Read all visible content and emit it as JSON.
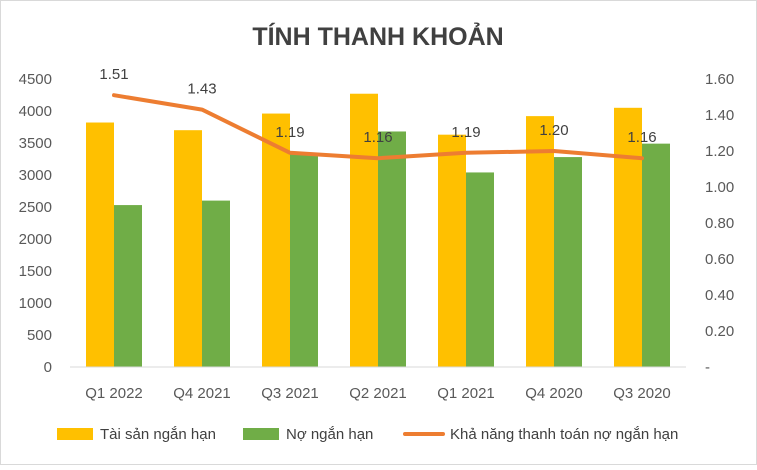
{
  "chart_data": {
    "type": "bar",
    "title": "TÍNH THANH KHOẢN",
    "categories": [
      "Q1 2022",
      "Q4 2021",
      "Q3 2021",
      "Q2 2021",
      "Q1 2021",
      "Q4 2020",
      "Q3 2020"
    ],
    "series": [
      {
        "name": "Tài sản ngắn hạn",
        "type": "bar",
        "axis": "left",
        "color": "#FFC000",
        "values": [
          3820,
          3700,
          3960,
          4270,
          3630,
          3920,
          4050
        ]
      },
      {
        "name": "Nợ ngắn hạn",
        "type": "bar",
        "axis": "left",
        "color": "#70AD47",
        "values": [
          2530,
          2600,
          3340,
          3680,
          3040,
          3280,
          3490
        ]
      },
      {
        "name": "Khả năng thanh toán nợ ngắn hạn",
        "type": "line",
        "axis": "right",
        "color": "#ED7D31",
        "values": [
          1.51,
          1.43,
          1.19,
          1.16,
          1.19,
          1.2,
          1.16
        ],
        "labels": [
          "1.51",
          "1.43",
          "1.19",
          "1.16",
          "1.19",
          "1.20",
          "1.16"
        ]
      }
    ],
    "y_left": {
      "min": 0,
      "max": 4500,
      "ticks": [
        "0",
        "500",
        "1000",
        "1500",
        "2000",
        "2500",
        "3000",
        "3500",
        "4000",
        "4500"
      ]
    },
    "y_right": {
      "min": 0,
      "max": 1.6,
      "ticks": [
        "-",
        "0.20",
        "0.40",
        "0.60",
        "0.80",
        "1.00",
        "1.20",
        "1.40",
        "1.60"
      ]
    },
    "grid": false,
    "legend_position": "bottom"
  }
}
